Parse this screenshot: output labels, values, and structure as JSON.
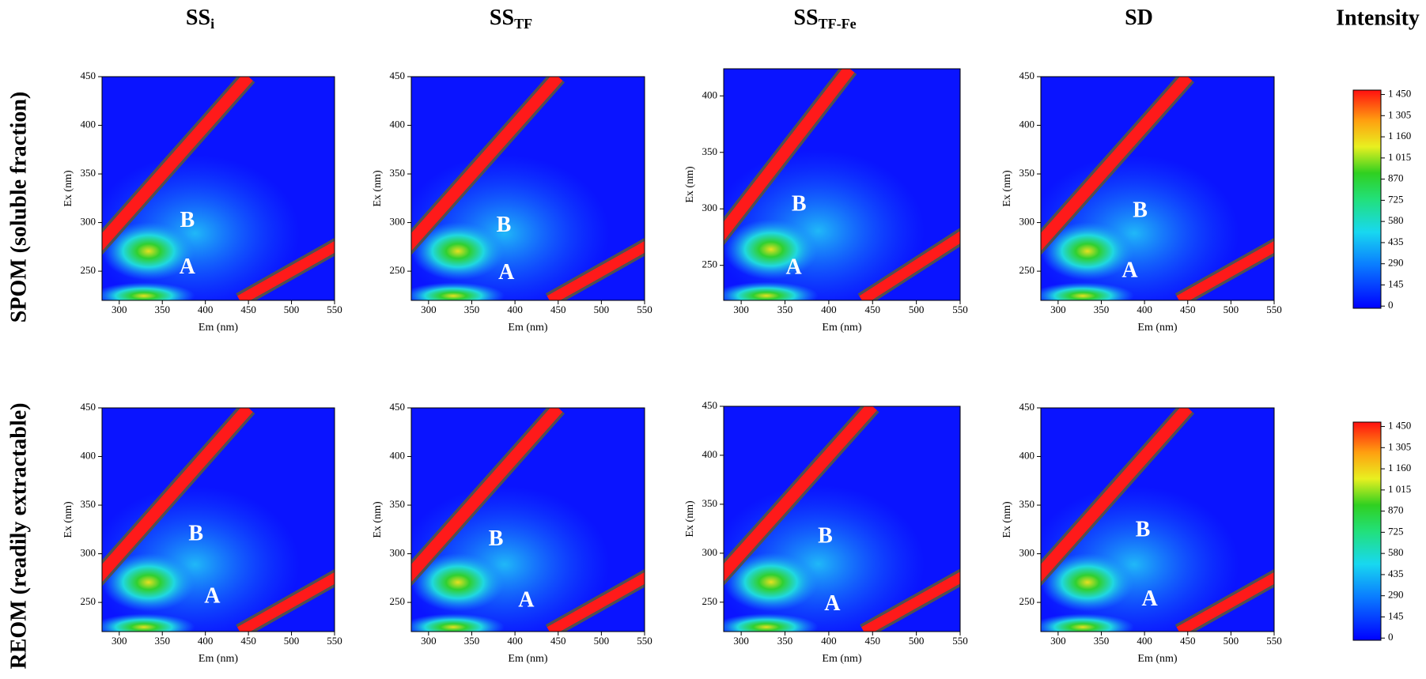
{
  "column_titles": [
    {
      "text": "SS",
      "subscript": "i"
    },
    {
      "text": "SS",
      "subscript": "TF"
    },
    {
      "text": "SS",
      "subscript": "TF-Fe"
    },
    {
      "text": "SD"
    }
  ],
  "colorbar_title": "Intensity",
  "row_titles": [
    "SPOM (soluble fraction)",
    "REOM (readily extractable)"
  ],
  "chart_data": [
    {
      "type": "contour",
      "xlabel": "Em (nm)",
      "ylabel": "Ex (nm)",
      "xlim": [
        280,
        550
      ],
      "ylim": [
        220,
        450
      ],
      "xticks": [
        300,
        350,
        400,
        450,
        500,
        550
      ],
      "yticks": [
        250,
        300,
        350,
        400,
        450
      ],
      "annotations": [
        {
          "text": "B",
          "x": 379,
          "y": 301
        },
        {
          "text": "A",
          "x": 379,
          "y": 253
        }
      ]
    },
    {
      "type": "contour",
      "xlabel": "Em (nm)",
      "ylabel": "Ex (nm)",
      "xlim": [
        280,
        550
      ],
      "ylim": [
        220,
        450
      ],
      "xticks": [
        300,
        350,
        400,
        450,
        500,
        550
      ],
      "yticks": [
        250,
        300,
        350,
        400,
        450
      ],
      "annotations": [
        {
          "text": "B",
          "x": 387,
          "y": 296
        },
        {
          "text": "A",
          "x": 390,
          "y": 247
        }
      ]
    },
    {
      "type": "contour",
      "xlabel": "Em (nm)",
      "ylabel": "Ex (nm)",
      "xlim": [
        280,
        550
      ],
      "ylim": [
        219,
        424
      ],
      "xticks": [
        300,
        350,
        400,
        450,
        500,
        550
      ],
      "yticks": [
        250,
        300,
        350,
        400
      ],
      "annotations": [
        {
          "text": "B",
          "x": 366,
          "y": 303
        },
        {
          "text": "A",
          "x": 360,
          "y": 247
        }
      ]
    },
    {
      "type": "contour",
      "xlabel": "Em (nm)",
      "ylabel": "Ex (nm)",
      "xlim": [
        280,
        550
      ],
      "ylim": [
        220,
        450
      ],
      "xticks": [
        300,
        350,
        400,
        450,
        500,
        550
      ],
      "yticks": [
        250,
        300,
        350,
        400,
        450
      ],
      "annotations": [
        {
          "text": "B",
          "x": 395,
          "y": 311
        },
        {
          "text": "A",
          "x": 383,
          "y": 249
        }
      ]
    },
    {
      "type": "contour",
      "xlabel": "Em (nm)",
      "ylabel": "Ex (nm)",
      "xlim": [
        280,
        550
      ],
      "ylim": [
        220,
        450
      ],
      "xticks": [
        300,
        350,
        400,
        450,
        500,
        550
      ],
      "yticks": [
        250,
        300,
        350,
        400,
        450
      ],
      "annotations": [
        {
          "text": "B",
          "x": 389,
          "y": 319
        },
        {
          "text": "A",
          "x": 408,
          "y": 255
        }
      ]
    },
    {
      "type": "contour",
      "xlabel": "Em (nm)",
      "ylabel": "Ex (nm)",
      "xlim": [
        280,
        550
      ],
      "ylim": [
        220,
        450
      ],
      "xticks": [
        300,
        350,
        400,
        450,
        500,
        550
      ],
      "yticks": [
        250,
        300,
        350,
        400,
        450
      ],
      "annotations": [
        {
          "text": "B",
          "x": 378,
          "y": 314
        },
        {
          "text": "A",
          "x": 413,
          "y": 251
        }
      ]
    },
    {
      "type": "contour",
      "xlabel": "Em (nm)",
      "ylabel": "Ex (nm)",
      "xlim": [
        280,
        550
      ],
      "ylim": [
        220,
        450
      ],
      "xticks": [
        300,
        350,
        400,
        450,
        500,
        550
      ],
      "yticks": [
        250,
        300,
        350,
        400,
        450
      ],
      "annotations": [
        {
          "text": "B",
          "x": 396,
          "y": 316
        },
        {
          "text": "A",
          "x": 404,
          "y": 247
        }
      ]
    },
    {
      "type": "contour",
      "xlabel": "Em (nm)",
      "ylabel": "Ex (nm)",
      "xlim": [
        280,
        550
      ],
      "ylim": [
        220,
        450
      ],
      "xticks": [
        300,
        350,
        400,
        450,
        500,
        550
      ],
      "yticks": [
        250,
        300,
        350,
        400,
        450
      ],
      "annotations": [
        {
          "text": "B",
          "x": 398,
          "y": 323
        },
        {
          "text": "A",
          "x": 406,
          "y": 252
        }
      ]
    }
  ],
  "colorbars": [
    {
      "clim": [
        -15,
        1480
      ],
      "ticks": [
        0,
        145,
        290,
        435,
        580,
        725,
        870,
        {
          "value": 1015,
          "label": "1 015"
        },
        {
          "value": 1160,
          "label": "1 160"
        },
        {
          "value": 1305,
          "label": "1 305"
        },
        {
          "value": 1450,
          "label": "1 450"
        }
      ]
    },
    {
      "clim": [
        -15,
        1480
      ],
      "ticks": [
        0,
        145,
        290,
        435,
        580,
        725,
        870,
        {
          "value": 1015,
          "label": "1 015"
        },
        {
          "value": 1160,
          "label": "1 160"
        },
        {
          "value": 1305,
          "label": "1 305"
        },
        {
          "value": 1450,
          "label": "1 450"
        }
      ]
    }
  ]
}
